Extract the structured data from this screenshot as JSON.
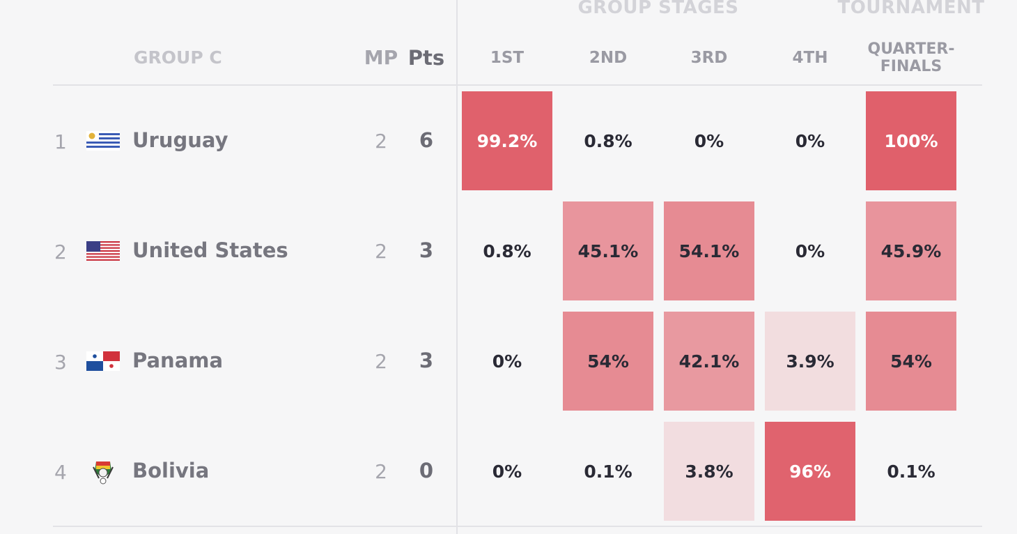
{
  "header": {
    "super_group_stages": "GROUP STAGES",
    "super_tournament": "TOURNAMENT",
    "group_label": "GROUP C",
    "mp_label": "MP",
    "pts_label": "Pts",
    "stage_labels": [
      "1ST",
      "2ND",
      "3RD",
      "4TH"
    ],
    "qf_label_line1": "QUARTER-",
    "qf_label_line2": "FINALS"
  },
  "colors": {
    "background": "#f6f6f7",
    "heat_max": "#e0606b",
    "heat_mid": "#e9a0a6",
    "heat_low": "#f3eeee"
  },
  "rows": [
    {
      "rank": "1",
      "team": "Uruguay",
      "flag_icon": "uruguay-flag-icon",
      "mp": "2",
      "pts": "6",
      "cells": [
        "99.2%",
        "0.8%",
        "0%",
        "0%",
        "100%"
      ],
      "values": [
        99.2,
        0.8,
        0,
        0,
        100
      ]
    },
    {
      "rank": "2",
      "team": "United States",
      "flag_icon": "usa-flag-icon",
      "mp": "2",
      "pts": "3",
      "cells": [
        "0.8%",
        "45.1%",
        "54.1%",
        "0%",
        "45.9%"
      ],
      "values": [
        0.8,
        45.1,
        54.1,
        0,
        45.9
      ]
    },
    {
      "rank": "3",
      "team": "Panama",
      "flag_icon": "panama-flag-icon",
      "mp": "2",
      "pts": "3",
      "cells": [
        "0%",
        "54%",
        "42.1%",
        "3.9%",
        "54%"
      ],
      "values": [
        0,
        54,
        42.1,
        3.9,
        54
      ]
    },
    {
      "rank": "4",
      "team": "Bolivia",
      "flag_icon": "bolivia-crest-icon",
      "mp": "2",
      "pts": "0",
      "cells": [
        "0%",
        "0.1%",
        "3.8%",
        "96%",
        "0.1%"
      ],
      "values": [
        0,
        0.1,
        3.8,
        96,
        0.1
      ]
    }
  ]
}
